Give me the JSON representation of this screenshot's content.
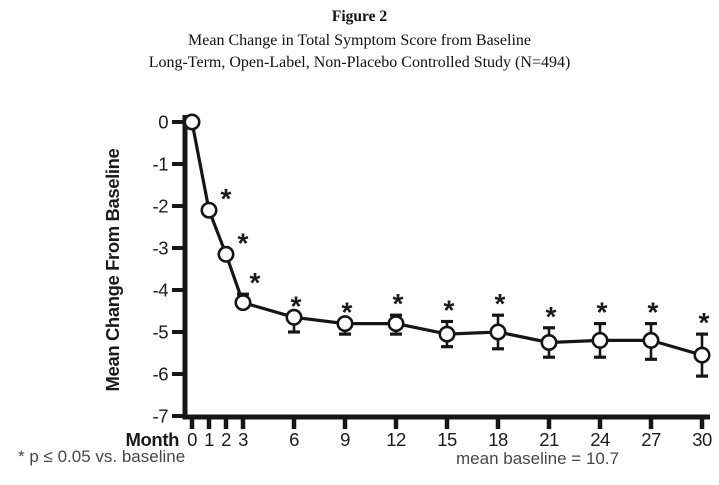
{
  "figure": {
    "label": "Figure 2",
    "title_line1": "Mean Change in Total Symptom Score from Baseline",
    "title_line2": "Long-Term, Open-Label, Non-Placebo Controlled Study (N=494)"
  },
  "footnotes": {
    "left": "* p ≤ 0.05 vs. baseline",
    "right": "mean baseline = 10.7"
  },
  "chart_data": {
    "type": "line",
    "title": "Mean Change in Total Symptom Score from Baseline",
    "xlabel": "Month",
    "ylabel": "Mean Change From Baseline",
    "x": [
      0,
      1,
      2,
      3,
      6,
      9,
      12,
      15,
      18,
      21,
      24,
      27,
      30
    ],
    "y": [
      0,
      -2.1,
      -3.15,
      -4.3,
      -4.65,
      -4.8,
      -4.8,
      -5.05,
      -5.0,
      -5.25,
      -5.2,
      -5.2,
      -5.55
    ],
    "err_up": [
      0,
      0,
      0,
      0.2,
      0,
      0,
      0.2,
      0.3,
      0.4,
      0.35,
      0.4,
      0.4,
      0.5
    ],
    "err_down": [
      0,
      0,
      0,
      0,
      0.35,
      0.25,
      0.25,
      0.3,
      0.4,
      0.35,
      0.4,
      0.45,
      0.5
    ],
    "significant": [
      false,
      true,
      true,
      true,
      true,
      true,
      true,
      true,
      true,
      true,
      true,
      true,
      true
    ],
    "significance_marker": "*",
    "xticks": [
      0,
      1,
      2,
      3,
      6,
      9,
      12,
      15,
      18,
      21,
      24,
      27,
      30
    ],
    "yticks": [
      0,
      -1,
      -2,
      -3,
      -4,
      -5,
      -6,
      -7
    ],
    "xlim": [
      0,
      30
    ],
    "ylim": [
      -7,
      0
    ],
    "grid": false,
    "legend": "none",
    "marker": "open-circle",
    "colors": {
      "line": "#161616",
      "marker_fill": "#ffffff",
      "marker_stroke": "#161616",
      "axis": "#161616",
      "tick_text": "#1b1b1b",
      "footnote_text": "#474747"
    }
  }
}
